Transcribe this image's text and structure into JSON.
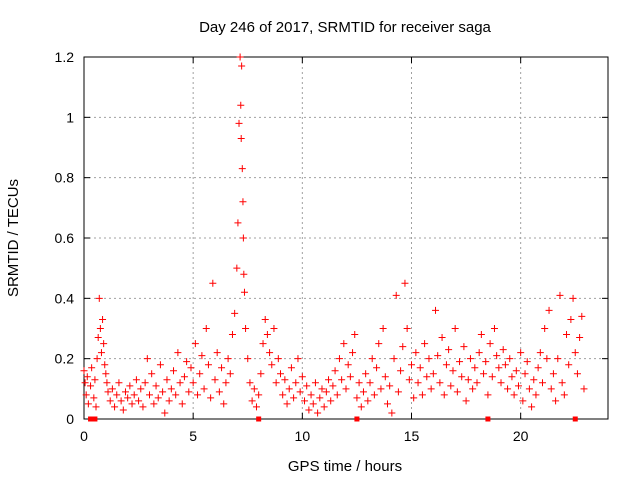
{
  "chart_data": {
    "type": "scatter",
    "title": "Day 246 of 2017, SRMTID for receiver saga",
    "xlabel": "GPS time / hours",
    "ylabel": "SRMTID / TECUs",
    "xlim": [
      0,
      24
    ],
    "ylim": [
      0,
      1.2
    ],
    "xticks": [
      0,
      5,
      10,
      15,
      20
    ],
    "xtick_labels": [
      "0",
      "5",
      "10",
      "15",
      "20"
    ],
    "yticks": [
      0,
      0.2,
      0.4,
      0.6,
      0.8,
      1.0,
      1.2
    ],
    "ytick_labels": [
      "0",
      "0.2",
      "0.4",
      "0.6",
      "0.8",
      "1",
      "1.2"
    ],
    "grid": true,
    "marker": "plus",
    "color": "#ff0000",
    "series": [
      {
        "name": "SRMTID",
        "points": [
          [
            0.0,
            0.16
          ],
          [
            0.05,
            0.12
          ],
          [
            0.1,
            0.08
          ],
          [
            0.15,
            0.14
          ],
          [
            0.2,
            0.05
          ],
          [
            0.3,
            0.11
          ],
          [
            0.35,
            0.17
          ],
          [
            0.45,
            0.07
          ],
          [
            0.5,
            0.13
          ],
          [
            0.55,
            0.04
          ],
          [
            0.6,
            0.2
          ],
          [
            0.65,
            0.27
          ],
          [
            0.7,
            0.4
          ],
          [
            0.75,
            0.3
          ],
          [
            0.8,
            0.22
          ],
          [
            0.85,
            0.33
          ],
          [
            0.9,
            0.25
          ],
          [
            0.95,
            0.18
          ],
          [
            1.0,
            0.15
          ],
          [
            1.05,
            0.12
          ],
          [
            1.1,
            0.09
          ],
          [
            1.2,
            0.06
          ],
          [
            1.3,
            0.1
          ],
          [
            1.4,
            0.04
          ],
          [
            1.5,
            0.08
          ],
          [
            1.6,
            0.12
          ],
          [
            1.7,
            0.06
          ],
          [
            1.8,
            0.03
          ],
          [
            1.9,
            0.09
          ],
          [
            2.0,
            0.07
          ],
          [
            2.1,
            0.11
          ],
          [
            2.2,
            0.05
          ],
          [
            2.3,
            0.08
          ],
          [
            2.4,
            0.13
          ],
          [
            2.5,
            0.06
          ],
          [
            2.6,
            0.1
          ],
          [
            2.7,
            0.04
          ],
          [
            2.8,
            0.12
          ],
          [
            2.9,
            0.2
          ],
          [
            3.0,
            0.08
          ],
          [
            3.1,
            0.15
          ],
          [
            3.2,
            0.05
          ],
          [
            3.3,
            0.11
          ],
          [
            3.4,
            0.07
          ],
          [
            3.5,
            0.18
          ],
          [
            3.6,
            0.09
          ],
          [
            3.7,
            0.02
          ],
          [
            3.8,
            0.13
          ],
          [
            3.9,
            0.06
          ],
          [
            4.0,
            0.1
          ],
          [
            4.1,
            0.16
          ],
          [
            4.2,
            0.08
          ],
          [
            4.3,
            0.22
          ],
          [
            4.4,
            0.12
          ],
          [
            4.5,
            0.05
          ],
          [
            4.6,
            0.14
          ],
          [
            4.7,
            0.19
          ],
          [
            4.8,
            0.09
          ],
          [
            4.9,
            0.17
          ],
          [
            5.0,
            0.12
          ],
          [
            5.1,
            0.25
          ],
          [
            5.2,
            0.08
          ],
          [
            5.3,
            0.15
          ],
          [
            5.4,
            0.21
          ],
          [
            5.5,
            0.1
          ],
          [
            5.6,
            0.3
          ],
          [
            5.7,
            0.18
          ],
          [
            5.8,
            0.07
          ],
          [
            5.9,
            0.45
          ],
          [
            6.0,
            0.13
          ],
          [
            6.1,
            0.22
          ],
          [
            6.2,
            0.09
          ],
          [
            6.3,
            0.17
          ],
          [
            6.4,
            0.05
          ],
          [
            6.5,
            0.12
          ],
          [
            6.6,
            0.2
          ],
          [
            6.7,
            0.15
          ],
          [
            6.8,
            0.28
          ],
          [
            6.9,
            0.35
          ],
          [
            7.0,
            0.5
          ],
          [
            7.05,
            0.65
          ],
          [
            7.1,
            0.98
          ],
          [
            7.15,
            1.2
          ],
          [
            7.18,
            1.04
          ],
          [
            7.2,
            0.93
          ],
          [
            7.22,
            1.17
          ],
          [
            7.25,
            0.83
          ],
          [
            7.28,
            0.72
          ],
          [
            7.3,
            0.6
          ],
          [
            7.32,
            0.48
          ],
          [
            7.35,
            0.42
          ],
          [
            7.4,
            0.3
          ],
          [
            7.5,
            0.2
          ],
          [
            7.6,
            0.12
          ],
          [
            7.7,
            0.06
          ],
          [
            7.8,
            0.1
          ],
          [
            7.9,
            0.04
          ],
          [
            8.0,
            0.08
          ],
          [
            8.1,
            0.15
          ],
          [
            8.2,
            0.25
          ],
          [
            8.3,
            0.33
          ],
          [
            8.4,
            0.28
          ],
          [
            8.5,
            0.22
          ],
          [
            8.6,
            0.18
          ],
          [
            8.7,
            0.3
          ],
          [
            8.8,
            0.12
          ],
          [
            8.9,
            0.2
          ],
          [
            9.0,
            0.15
          ],
          [
            9.1,
            0.08
          ],
          [
            9.2,
            0.13
          ],
          [
            9.3,
            0.05
          ],
          [
            9.4,
            0.1
          ],
          [
            9.5,
            0.17
          ],
          [
            9.6,
            0.07
          ],
          [
            9.7,
            0.12
          ],
          [
            9.8,
            0.2
          ],
          [
            9.9,
            0.09
          ],
          [
            10.0,
            0.14
          ],
          [
            10.1,
            0.06
          ],
          [
            10.2,
            0.11
          ],
          [
            10.3,
            0.03
          ],
          [
            10.4,
            0.08
          ],
          [
            10.5,
            0.05
          ],
          [
            10.6,
            0.12
          ],
          [
            10.7,
            0.02
          ],
          [
            10.8,
            0.07
          ],
          [
            10.9,
            0.1
          ],
          [
            11.0,
            0.04
          ],
          [
            11.1,
            0.09
          ],
          [
            11.2,
            0.13
          ],
          [
            11.3,
            0.06
          ],
          [
            11.4,
            0.11
          ],
          [
            11.5,
            0.16
          ],
          [
            11.6,
            0.08
          ],
          [
            11.7,
            0.2
          ],
          [
            11.8,
            0.13
          ],
          [
            11.9,
            0.25
          ],
          [
            12.0,
            0.1
          ],
          [
            12.1,
            0.18
          ],
          [
            12.2,
            0.14
          ],
          [
            12.3,
            0.22
          ],
          [
            12.4,
            0.28
          ],
          [
            12.5,
            0.07
          ],
          [
            12.6,
            0.12
          ],
          [
            12.7,
            0.04
          ],
          [
            12.8,
            0.09
          ],
          [
            12.9,
            0.15
          ],
          [
            13.0,
            0.06
          ],
          [
            13.1,
            0.12
          ],
          [
            13.2,
            0.2
          ],
          [
            13.3,
            0.08
          ],
          [
            13.4,
            0.17
          ],
          [
            13.5,
            0.25
          ],
          [
            13.6,
            0.1
          ],
          [
            13.7,
            0.3
          ],
          [
            13.8,
            0.14
          ],
          [
            13.9,
            0.05
          ],
          [
            14.0,
            0.11
          ],
          [
            14.1,
            0.02
          ],
          [
            14.2,
            0.2
          ],
          [
            14.3,
            0.41
          ],
          [
            14.4,
            0.09
          ],
          [
            14.5,
            0.16
          ],
          [
            14.6,
            0.24
          ],
          [
            14.7,
            0.45
          ],
          [
            14.8,
            0.3
          ],
          [
            14.9,
            0.13
          ],
          [
            15.0,
            0.18
          ],
          [
            15.1,
            0.07
          ],
          [
            15.2,
            0.22
          ],
          [
            15.3,
            0.12
          ],
          [
            15.4,
            0.17
          ],
          [
            15.5,
            0.08
          ],
          [
            15.6,
            0.25
          ],
          [
            15.7,
            0.14
          ],
          [
            15.8,
            0.2
          ],
          [
            15.9,
            0.1
          ],
          [
            16.0,
            0.15
          ],
          [
            16.1,
            0.36
          ],
          [
            16.2,
            0.21
          ],
          [
            16.3,
            0.12
          ],
          [
            16.4,
            0.27
          ],
          [
            16.5,
            0.08
          ],
          [
            16.6,
            0.18
          ],
          [
            16.7,
            0.23
          ],
          [
            16.8,
            0.11
          ],
          [
            16.9,
            0.16
          ],
          [
            17.0,
            0.3
          ],
          [
            17.1,
            0.09
          ],
          [
            17.2,
            0.19
          ],
          [
            17.3,
            0.14
          ],
          [
            17.4,
            0.24
          ],
          [
            17.5,
            0.06
          ],
          [
            17.6,
            0.13
          ],
          [
            17.7,
            0.2
          ],
          [
            17.8,
            0.1
          ],
          [
            17.9,
            0.17
          ],
          [
            18.0,
            0.12
          ],
          [
            18.1,
            0.22
          ],
          [
            18.2,
            0.28
          ],
          [
            18.3,
            0.15
          ],
          [
            18.4,
            0.19
          ],
          [
            18.5,
            0.08
          ],
          [
            18.6,
            0.25
          ],
          [
            18.7,
            0.14
          ],
          [
            18.8,
            0.3
          ],
          [
            18.9,
            0.21
          ],
          [
            19.0,
            0.17
          ],
          [
            19.1,
            0.12
          ],
          [
            19.2,
            0.23
          ],
          [
            19.3,
            0.18
          ],
          [
            19.4,
            0.1
          ],
          [
            19.5,
            0.2
          ],
          [
            19.6,
            0.14
          ],
          [
            19.7,
            0.08
          ],
          [
            19.8,
            0.16
          ],
          [
            19.9,
            0.11
          ],
          [
            20.0,
            0.22
          ],
          [
            20.1,
            0.06
          ],
          [
            20.2,
            0.15
          ],
          [
            20.3,
            0.19
          ],
          [
            20.4,
            0.1
          ],
          [
            20.5,
            0.04
          ],
          [
            20.6,
            0.13
          ],
          [
            20.7,
            0.08
          ],
          [
            20.8,
            0.17
          ],
          [
            20.9,
            0.22
          ],
          [
            21.0,
            0.12
          ],
          [
            21.1,
            0.3
          ],
          [
            21.2,
            0.2
          ],
          [
            21.3,
            0.36
          ],
          [
            21.4,
            0.1
          ],
          [
            21.5,
            0.15
          ],
          [
            21.6,
            0.06
          ],
          [
            21.7,
            0.2
          ],
          [
            21.8,
            0.41
          ],
          [
            21.9,
            0.12
          ],
          [
            22.0,
            0.08
          ],
          [
            22.1,
            0.28
          ],
          [
            22.2,
            0.18
          ],
          [
            22.3,
            0.33
          ],
          [
            22.4,
            0.4
          ],
          [
            22.5,
            0.22
          ],
          [
            22.6,
            0.15
          ],
          [
            22.7,
            0.27
          ],
          [
            22.8,
            0.34
          ],
          [
            22.9,
            0.1
          ]
        ]
      }
    ],
    "gap_markers_x": [
      0.3,
      0.5,
      8.0,
      12.5,
      18.5,
      22.5
    ]
  }
}
